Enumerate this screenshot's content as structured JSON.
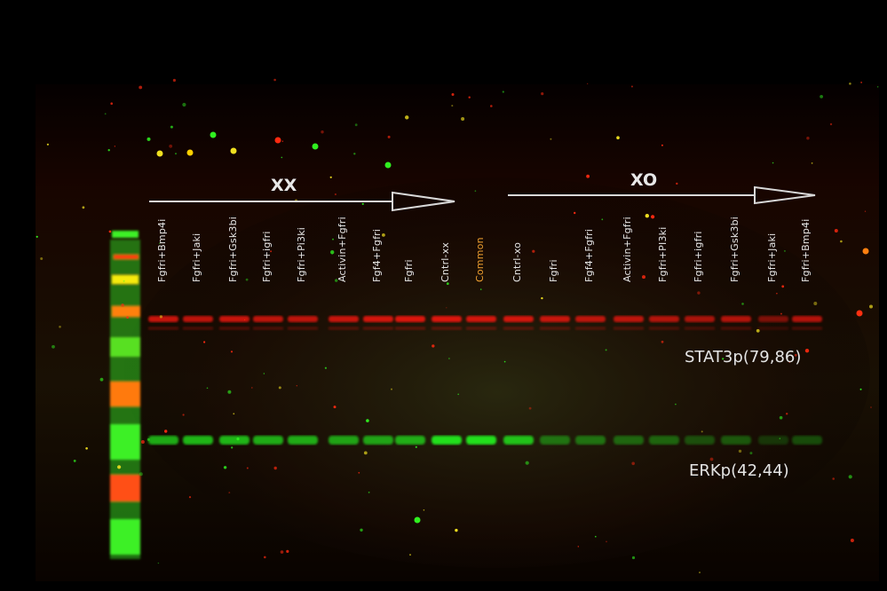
{
  "groups": {
    "xx": "XX",
    "xo": "XO"
  },
  "bands": {
    "stat3": "STAT3p(79,86)",
    "erk": "ERKp(42,44)"
  },
  "lanes": [
    {
      "label": "Fgfri+Bmp4i",
      "color": "#e6e6e6",
      "red": 0.85,
      "green": 0.75
    },
    {
      "label": "Fgfri+Jaki",
      "color": "#e6e6e6",
      "red": 0.8,
      "green": 0.8
    },
    {
      "label": "Fgfri+Gsk3bi",
      "color": "#e6e6e6",
      "red": 0.85,
      "green": 0.8
    },
    {
      "label": "Fgfri+igfri",
      "color": "#e6e6e6",
      "red": 0.8,
      "green": 0.75
    },
    {
      "label": "Fgfri+Pi3ki",
      "color": "#e6e6e6",
      "red": 0.8,
      "green": 0.75
    },
    {
      "label": "Activin+Fgfri",
      "color": "#e6e6e6",
      "red": 0.85,
      "green": 0.7
    },
    {
      "label": "Fgf4+Fgfri",
      "color": "#e6e6e6",
      "red": 0.9,
      "green": 0.7
    },
    {
      "label": "Fgfri",
      "color": "#e6e6e6",
      "red": 0.95,
      "green": 0.75
    },
    {
      "label": "Cntrl-xx",
      "color": "#e6e6e6",
      "red": 0.95,
      "green": 1.0
    },
    {
      "label": "Common",
      "color": "#f0a030",
      "red": 0.9,
      "green": 1.0
    },
    {
      "label": "Cntrl-xo",
      "color": "#e6e6e6",
      "red": 0.9,
      "green": 0.85
    },
    {
      "label": "Fgfri",
      "color": "#e6e6e6",
      "red": 0.85,
      "green": 0.45
    },
    {
      "label": "Fgf4+Fgfri",
      "color": "#e6e6e6",
      "red": 0.8,
      "green": 0.45
    },
    {
      "label": "Activin+Fgfri",
      "color": "#e6e6e6",
      "red": 0.8,
      "green": 0.4
    },
    {
      "label": "Fgfri+PI3ki",
      "color": "#e6e6e6",
      "red": 0.75,
      "green": 0.4
    },
    {
      "label": "Fgfri+igfri",
      "color": "#e6e6e6",
      "red": 0.7,
      "green": 0.3
    },
    {
      "label": "Fgfri+Gsk3bi",
      "color": "#e6e6e6",
      "red": 0.75,
      "green": 0.35
    },
    {
      "label": "Fgfri+Jaki",
      "color": "#e6e6e6",
      "red": 0.5,
      "green": 0.2
    },
    {
      "label": "Fgfri+Bmp4i",
      "color": "#e6e6e6",
      "red": 0.75,
      "green": 0.3
    }
  ],
  "colors": {
    "red_band": "#e8140a",
    "green_band": "#22e01e",
    "ladder_green": "#3cf028",
    "ladder_red": "#ff3a10",
    "ladder_yellow": "#f6ea10",
    "arrow": "#d8d8d8"
  }
}
